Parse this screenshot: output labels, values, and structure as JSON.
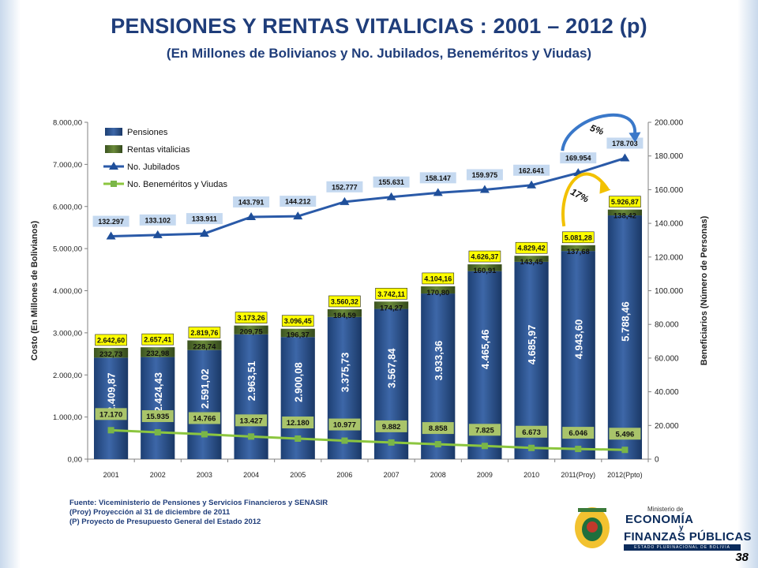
{
  "header": {
    "title": "PENSIONES Y RENTAS VITALICIAS : 2001 – 2012 (p)",
    "subtitle": "(En Millones de Bolivianos y No. Jubilados, Beneméritos y Viudas)"
  },
  "chart_data": {
    "type": "bar",
    "stacked": true,
    "categories": [
      "2001",
      "2002",
      "2003",
      "2004",
      "2005",
      "2006",
      "2007",
      "2008",
      "2009",
      "2010",
      "2011(Proy)",
      "2012(Ppto)"
    ],
    "series": [
      {
        "name": "Pensiones",
        "axis": "left",
        "type": "bar",
        "color": "#2e5591",
        "values": [
          2409.87,
          2424.43,
          2591.02,
          2963.51,
          2900.08,
          3375.73,
          3567.84,
          3933.36,
          4465.46,
          4685.97,
          4943.6,
          5788.46
        ],
        "labels": [
          "2.409,87",
          "2.424,43",
          "2.591,02",
          "2.963,51",
          "2.900,08",
          "3.375,73",
          "3.567,84",
          "3.933,36",
          "4.465,46",
          "4.685,97",
          "4.943,60",
          "5.788,46"
        ]
      },
      {
        "name": "Rentas vitalicias",
        "axis": "left",
        "type": "bar",
        "color": "#4f6b2c",
        "values": [
          232.73,
          232.98,
          228.74,
          209.75,
          196.37,
          184.59,
          174.27,
          170.8,
          160.91,
          143.45,
          137.68,
          138.42
        ],
        "labels": [
          "232,73",
          "232,98",
          "228,74",
          "209,75",
          "196,37",
          "184,59",
          "174,27",
          "170,80",
          "160,91",
          "143,45",
          "137,68",
          "138,42"
        ]
      },
      {
        "name": "No. Jubilados",
        "axis": "right",
        "type": "line",
        "color": "#2a5aa8",
        "values": [
          132297,
          133102,
          133911,
          143791,
          144212,
          152777,
          155631,
          158147,
          159975,
          162641,
          169954,
          178703
        ],
        "labels": [
          "132.297",
          "133.102",
          "133.911",
          "143.791",
          "144.212",
          "152.777",
          "155.631",
          "158.147",
          "159.975",
          "162.641",
          "169.954",
          "178.703"
        ]
      },
      {
        "name": "No. Beneméritos y Viudas",
        "axis": "right",
        "type": "line",
        "color": "#8cc63f",
        "values": [
          17170,
          15935,
          14766,
          13427,
          12180,
          10977,
          9882,
          8858,
          7825,
          6673,
          6046,
          5496
        ],
        "labels": [
          "17.170",
          "15.935",
          "14.766",
          "13.427",
          "12.180",
          "10.977",
          "9.882",
          "8.858",
          "7.825",
          "6.673",
          "6.046",
          "5.496"
        ]
      }
    ],
    "totals": {
      "values": [
        2642.6,
        2657.41,
        2819.76,
        3173.26,
        3096.45,
        3560.32,
        3742.11,
        4104.16,
        4626.37,
        4829.42,
        5081.28,
        5926.87
      ],
      "labels": [
        "2.642,60",
        "2.657,41",
        "2.819,76",
        "3.173,26",
        "3.096,45",
        "3.560,32",
        "3.742,11",
        "4.104,16",
        "4.626,37",
        "4.829,42",
        "5.081,28",
        "5.926,87"
      ]
    },
    "ylabel": "Costo (En Millones de Bolivianos)",
    "y2label": "Beneficiarios (Número de Personas)",
    "ylim": [
      0,
      8000
    ],
    "y2lim": [
      0,
      200000
    ],
    "yticks": [
      "0,00",
      "1.000,00",
      "2.000,00",
      "3.000,00",
      "4.000,00",
      "5.000,00",
      "6.000,00",
      "7.000,00",
      "8.000,00"
    ],
    "y2ticks": [
      "0",
      "20.000",
      "40.000",
      "60.000",
      "80.000",
      "100.000",
      "120.000",
      "140.000",
      "160.000",
      "180.000",
      "200.000"
    ],
    "legend_position": "top-left",
    "annotations": [
      "5%",
      "17%"
    ],
    "grid": false
  },
  "footer": {
    "source": "Fuente: Viceministerio de Pensiones y Servicios Financieros y SENASIR",
    "note1": "(Proy) Proyección al 31 de diciembre de 2011",
    "note2": "(P) Proyecto de Presupuesto General del Estado 2012"
  },
  "logo": {
    "ministerio": "Ministerio de",
    "economia": "ECONOMÍA",
    "y": "y",
    "finanzas": "FINANZAS PÚBLICAS",
    "estado": "ESTADO PLURINACIONAL DE BOLIVIA"
  },
  "page_number": "38"
}
